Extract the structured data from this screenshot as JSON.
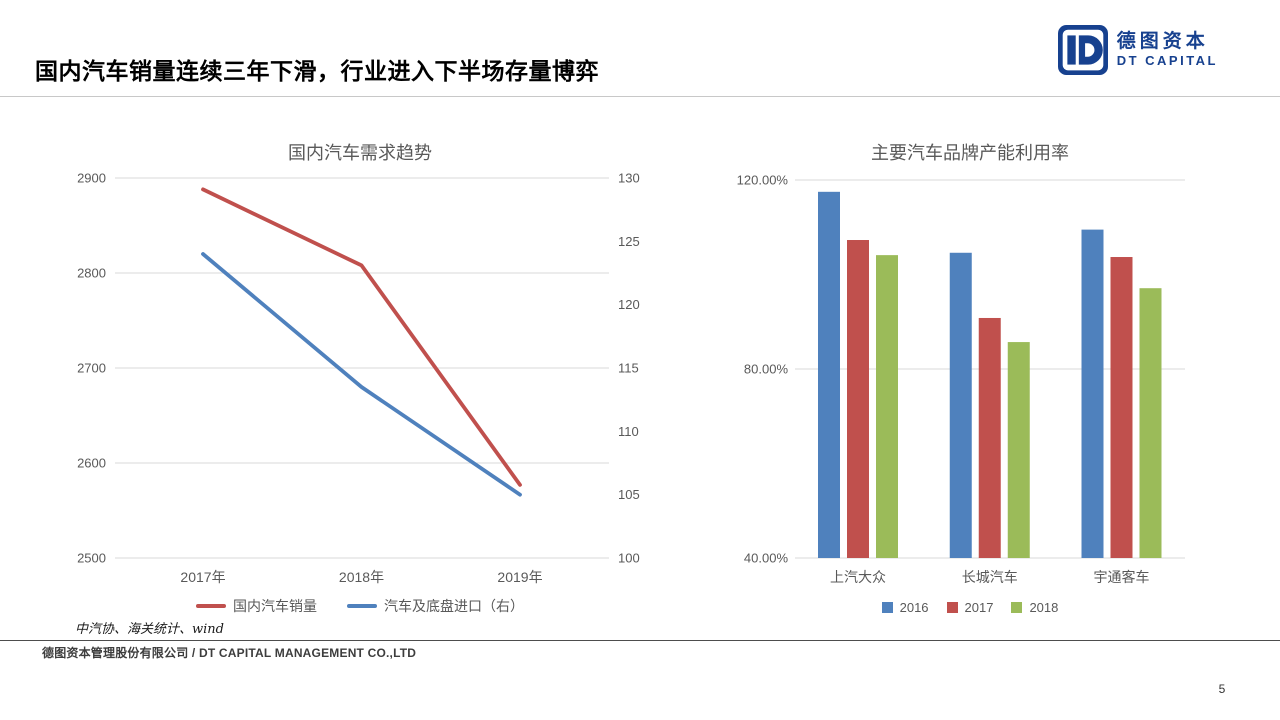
{
  "header": {
    "title": "国内汽车销量连续三年下滑，行业进入下半场存量博弈",
    "logo": {
      "cn": "德图资本",
      "en": "DT CAPITAL",
      "brand_color": "#17418F"
    }
  },
  "chart_data": [
    {
      "type": "line",
      "title": "国内汽车需求趋势",
      "categories": [
        "2017年",
        "2018年",
        "2019年"
      ],
      "series": [
        {
          "name": "国内汽车销量",
          "axis": "left",
          "color": "#C0504D",
          "values": [
            2888,
            2808,
            2577
          ]
        },
        {
          "name": "汽车及底盘进口（右）",
          "axis": "right",
          "color": "#4F81BD",
          "values": [
            124,
            113.5,
            105
          ]
        }
      ],
      "left_axis": {
        "min": 2500,
        "max": 2900,
        "ticks": [
          2900,
          2800,
          2700,
          2600,
          2500
        ]
      },
      "right_axis": {
        "min": 100,
        "max": 130,
        "ticks": [
          130,
          125,
          120,
          115,
          110,
          105,
          100
        ]
      },
      "grid": "horizontal",
      "legend_position": "bottom"
    },
    {
      "type": "bar",
      "title": "主要汽车品牌产能利用率",
      "categories": [
        "上汽大众",
        "长城汽车",
        "宇通客车"
      ],
      "series": [
        {
          "name": "2016",
          "color": "#4F81BD",
          "values": [
            117.5,
            104.6,
            109.5
          ]
        },
        {
          "name": "2017",
          "color": "#C0504D",
          "values": [
            107.3,
            90.8,
            103.7
          ]
        },
        {
          "name": "2018",
          "color": "#9BBB59",
          "values": [
            104.1,
            85.7,
            97.1
          ]
        }
      ],
      "y_axis": {
        "min": 40,
        "max": 120,
        "ticks": [
          {
            "value": 120,
            "label": "120.00%"
          },
          {
            "value": 80,
            "label": "80.00%"
          },
          {
            "value": 40,
            "label": "40.00%"
          }
        ]
      },
      "grid": "horizontal",
      "legend_position": "bottom"
    }
  ],
  "footer": {
    "source": "中汽协、海关统计、wind",
    "company": "德图资本管理股份有限公司 / DT CAPITAL MANAGEMENT CO.,LTD",
    "page_number": "5"
  },
  "style": {
    "grid_color": "#D9D9D9",
    "axis_text_color": "#595959"
  }
}
